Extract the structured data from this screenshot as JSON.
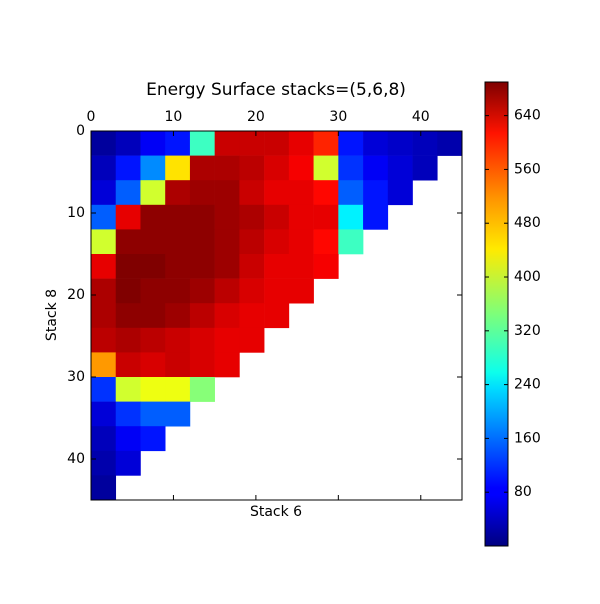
{
  "chart_data": {
    "type": "heatmap",
    "title": "Energy Surface stacks=(5,6,8)",
    "xlabel": "Stack 6",
    "ylabel": "Stack 8",
    "colormap": "jet",
    "xbins": [
      0,
      3,
      6,
      9,
      12,
      15,
      18,
      21,
      24,
      27,
      30,
      33,
      36,
      39,
      42,
      45
    ],
    "ybins": [
      0,
      3,
      6,
      9,
      12,
      15,
      18,
      21,
      24,
      27,
      30,
      33,
      36,
      39,
      42,
      45
    ],
    "xlim": [
      0,
      45
    ],
    "ylim": [
      45,
      0
    ],
    "xticks": [
      0,
      10,
      20,
      30,
      40
    ],
    "yticks": [
      0,
      10,
      20,
      30,
      40
    ],
    "z": [
      [
        20,
        40,
        80,
        100,
        300,
        640,
        640,
        640,
        620,
        580,
        100,
        60,
        50,
        40,
        30
      ],
      [
        40,
        100,
        180,
        450,
        660,
        660,
        650,
        630,
        610,
        400,
        120,
        80,
        60,
        40,
        null
      ],
      [
        60,
        150,
        400,
        660,
        670,
        670,
        640,
        620,
        620,
        600,
        150,
        100,
        60,
        null,
        null
      ],
      [
        150,
        620,
        680,
        680,
        680,
        670,
        660,
        640,
        620,
        620,
        250,
        100,
        null,
        null,
        null
      ],
      [
        400,
        680,
        680,
        680,
        680,
        670,
        650,
        630,
        620,
        600,
        300,
        null,
        null,
        null,
        null
      ],
      [
        620,
        690,
        690,
        680,
        680,
        670,
        640,
        620,
        620,
        610,
        null,
        null,
        null,
        null,
        null
      ],
      [
        660,
        690,
        680,
        680,
        670,
        650,
        630,
        620,
        620,
        null,
        null,
        null,
        null,
        null,
        null
      ],
      [
        660,
        680,
        680,
        670,
        650,
        630,
        620,
        620,
        null,
        null,
        null,
        null,
        null,
        null,
        null
      ],
      [
        650,
        660,
        650,
        640,
        630,
        620,
        620,
        null,
        null,
        null,
        null,
        null,
        null,
        null,
        null
      ],
      [
        500,
        640,
        630,
        640,
        630,
        620,
        null,
        null,
        null,
        null,
        null,
        null,
        null,
        null,
        null
      ],
      [
        120,
        400,
        420,
        420,
        350,
        null,
        null,
        null,
        null,
        null,
        null,
        null,
        null,
        null,
        null
      ],
      [
        60,
        120,
        150,
        150,
        null,
        null,
        null,
        null,
        null,
        null,
        null,
        null,
        null,
        null,
        null
      ],
      [
        40,
        80,
        100,
        null,
        null,
        null,
        null,
        null,
        null,
        null,
        null,
        null,
        null,
        null,
        null
      ],
      [
        30,
        60,
        null,
        null,
        null,
        null,
        null,
        null,
        null,
        null,
        null,
        null,
        null,
        null,
        null
      ],
      [
        20,
        null,
        null,
        null,
        null,
        null,
        null,
        null,
        null,
        null,
        null,
        null,
        null,
        null,
        null
      ]
    ],
    "colorbar": {
      "lim": [
        0,
        690
      ],
      "ticks": [
        80,
        160,
        240,
        320,
        400,
        480,
        560,
        640
      ]
    }
  }
}
